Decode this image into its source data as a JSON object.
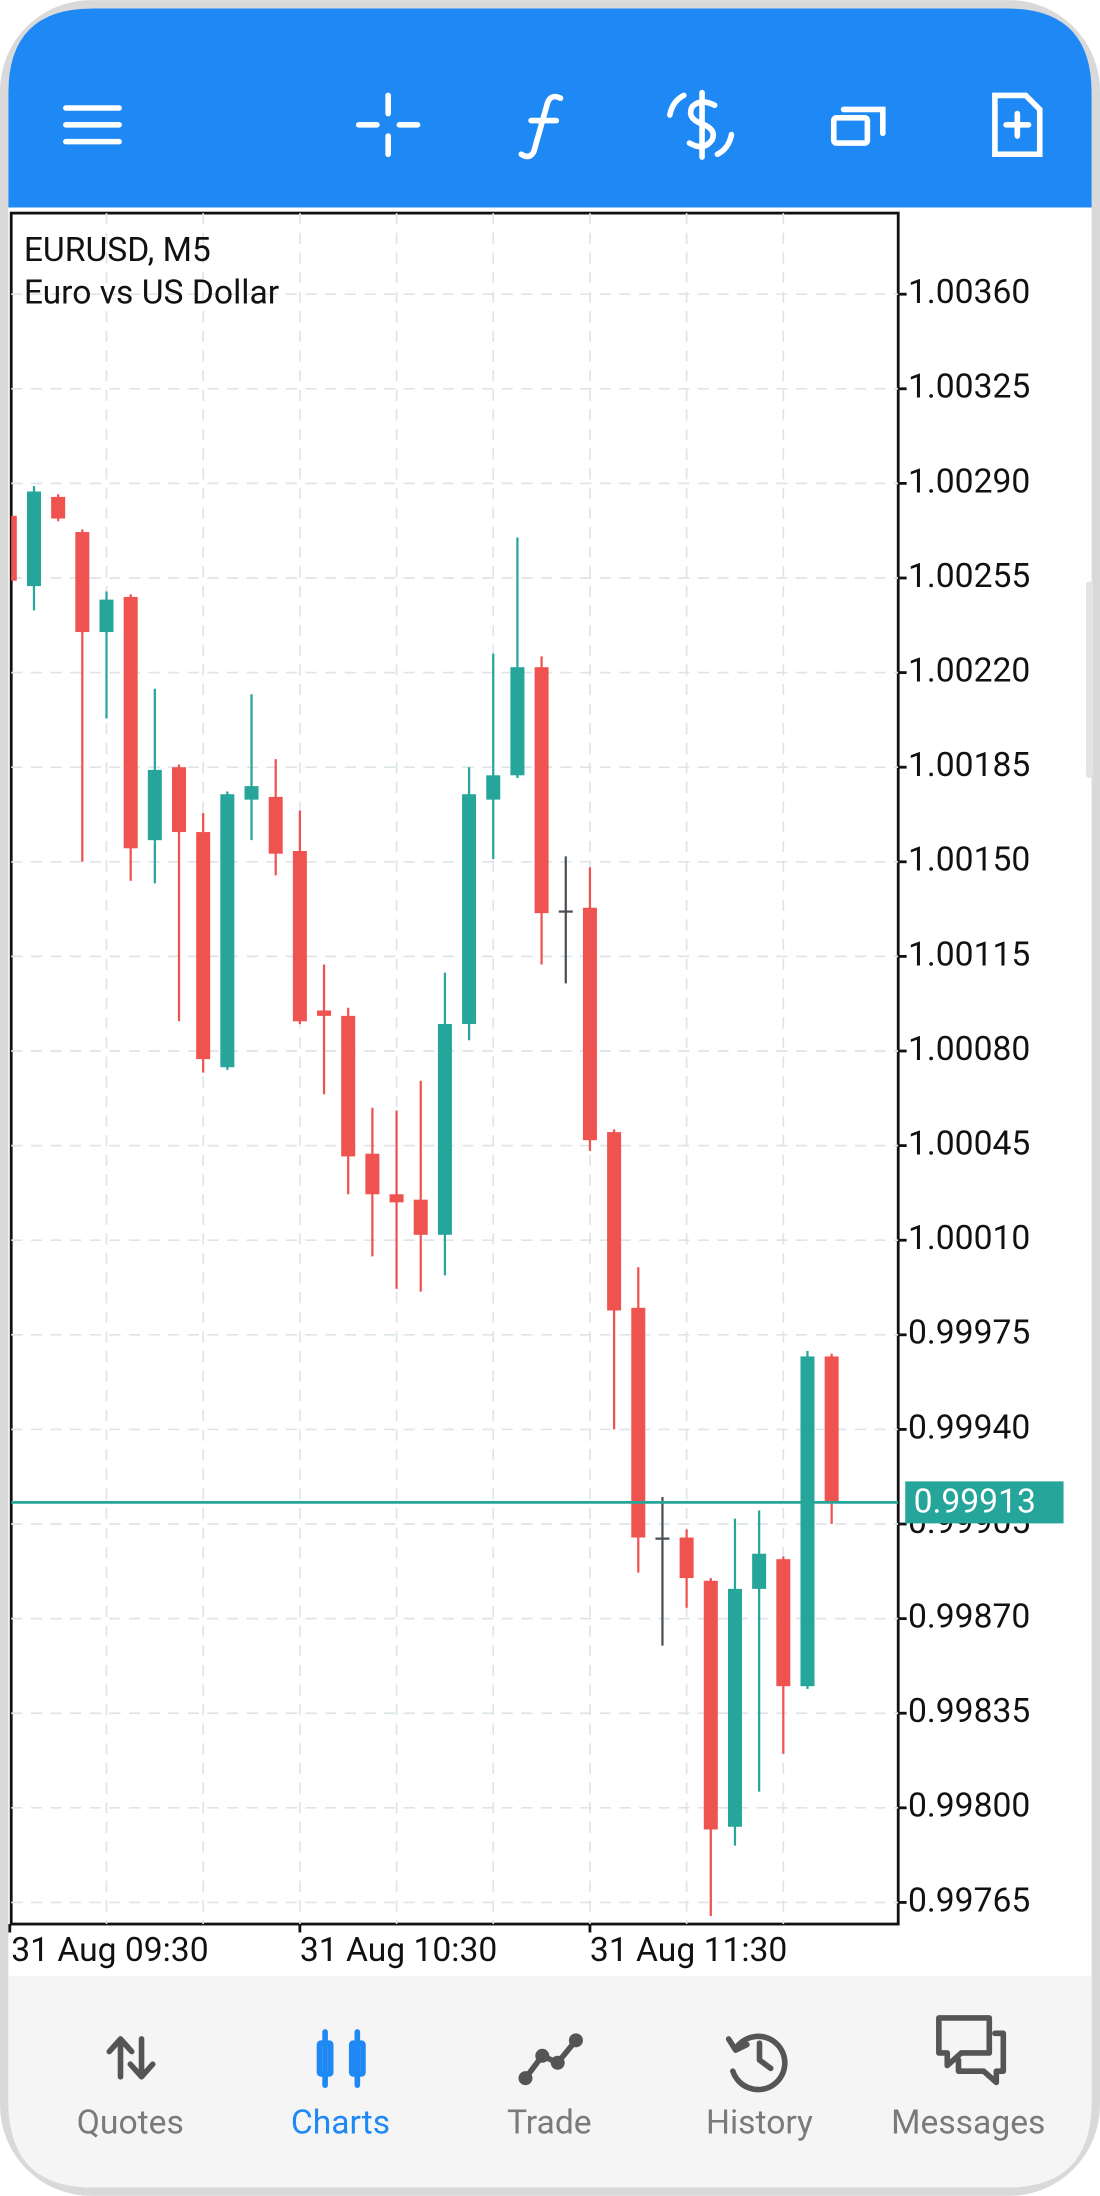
{
  "chart_data": {
    "type": "candlestick",
    "title": "EURUSD, M5",
    "subtitle": "Euro vs US Dollar",
    "categories": [
      "31 Aug 09:30",
      null,
      null,
      null,
      null,
      null,
      null,
      null,
      null,
      null,
      null,
      null,
      "31 Aug 10:30",
      null,
      null,
      null,
      null,
      null,
      null,
      null,
      null,
      null,
      null,
      null,
      "31 Aug 11:30",
      null,
      null,
      null,
      null,
      null,
      null,
      null,
      null,
      null,
      null
    ],
    "open": [
      1.00278,
      1.00252,
      1.00285,
      1.00272,
      1.00235,
      1.00248,
      1.00158,
      1.00185,
      1.00161,
      1.00074,
      1.00173,
      1.00174,
      1.00154,
      1.00095,
      1.00093,
      1.00042,
      1.00027,
      1.00025,
      1.00012,
      1.0009,
      1.00173,
      1.00182,
      1.00222,
      1.00132,
      1.00133,
      1.0005,
      0.99985,
      0.999,
      0.999,
      0.99884,
      0.99793,
      0.99881,
      0.99892,
      0.99845,
      0.99967
    ],
    "high": [
      1.00282,
      1.00289,
      1.00286,
      1.00273,
      1.0025,
      1.00249,
      1.00214,
      1.00186,
      1.00168,
      1.00176,
      1.00212,
      1.00188,
      1.00169,
      1.00112,
      1.00096,
      1.00059,
      1.00058,
      1.00069,
      1.00109,
      1.00185,
      1.00227,
      1.0027,
      1.00226,
      1.00152,
      1.00148,
      1.00051,
      1.0,
      0.99915,
      0.99903,
      0.99885,
      0.99907,
      0.9991,
      0.99893,
      0.99969,
      0.99968
    ],
    "low": [
      1.0025,
      1.00243,
      1.00276,
      1.0015,
      1.00203,
      1.00143,
      1.00142,
      1.00091,
      1.00072,
      1.00073,
      1.00158,
      1.00145,
      1.0009,
      1.00064,
      1.00027,
      1.00004,
      0.99992,
      0.99991,
      0.99997,
      1.00084,
      1.00151,
      1.00181,
      1.00112,
      1.00105,
      1.00043,
      0.9994,
      0.99887,
      0.9986,
      0.99874,
      0.9976,
      0.99786,
      0.99806,
      0.9982,
      0.99844,
      0.99905
    ],
    "close": [
      1.00254,
      1.00287,
      1.00277,
      1.00235,
      1.00247,
      1.00155,
      1.00184,
      1.00161,
      1.00077,
      1.00175,
      1.00178,
      1.00153,
      1.00091,
      1.00093,
      1.00041,
      1.00027,
      1.00024,
      1.00012,
      1.0009,
      1.00175,
      1.00182,
      1.00222,
      1.00131,
      1.00132,
      1.00047,
      0.99984,
      0.999,
      0.999,
      0.99885,
      0.99792,
      0.99881,
      0.99894,
      0.99845,
      0.99967,
      0.99913
    ],
    "ylim": [
      0.99757,
      1.0039
    ],
    "yticks": [
      {
        "value": 1.0036,
        "label": "1.00360"
      },
      1.00325,
      {
        "value": 1.0029,
        "label": "1.00290"
      },
      1.00255,
      {
        "value": 1.0022,
        "label": "1.00220"
      },
      1.00185,
      {
        "value": 1.0015,
        "label": "1.00150"
      },
      1.00115,
      {
        "value": 1.0008,
        "label": "1.00080"
      },
      1.00045,
      {
        "value": 1.0001,
        "label": "1.00010"
      },
      0.99975,
      {
        "value": 0.9994,
        "label": "0.99940"
      },
      0.99905,
      {
        "value": 0.9987,
        "label": "0.99870"
      },
      0.99835,
      {
        "value": 0.998,
        "label": "0.99800"
      },
      0.99765
    ],
    "current_price": 0.99913,
    "up_color": "#26a69a",
    "down_color": "#ef5350",
    "doji_color": "#4a4f55",
    "grid": true
  },
  "tabs": [
    "Quotes",
    "Charts",
    "Trade",
    "History",
    "Messages"
  ],
  "active_tab": 1
}
